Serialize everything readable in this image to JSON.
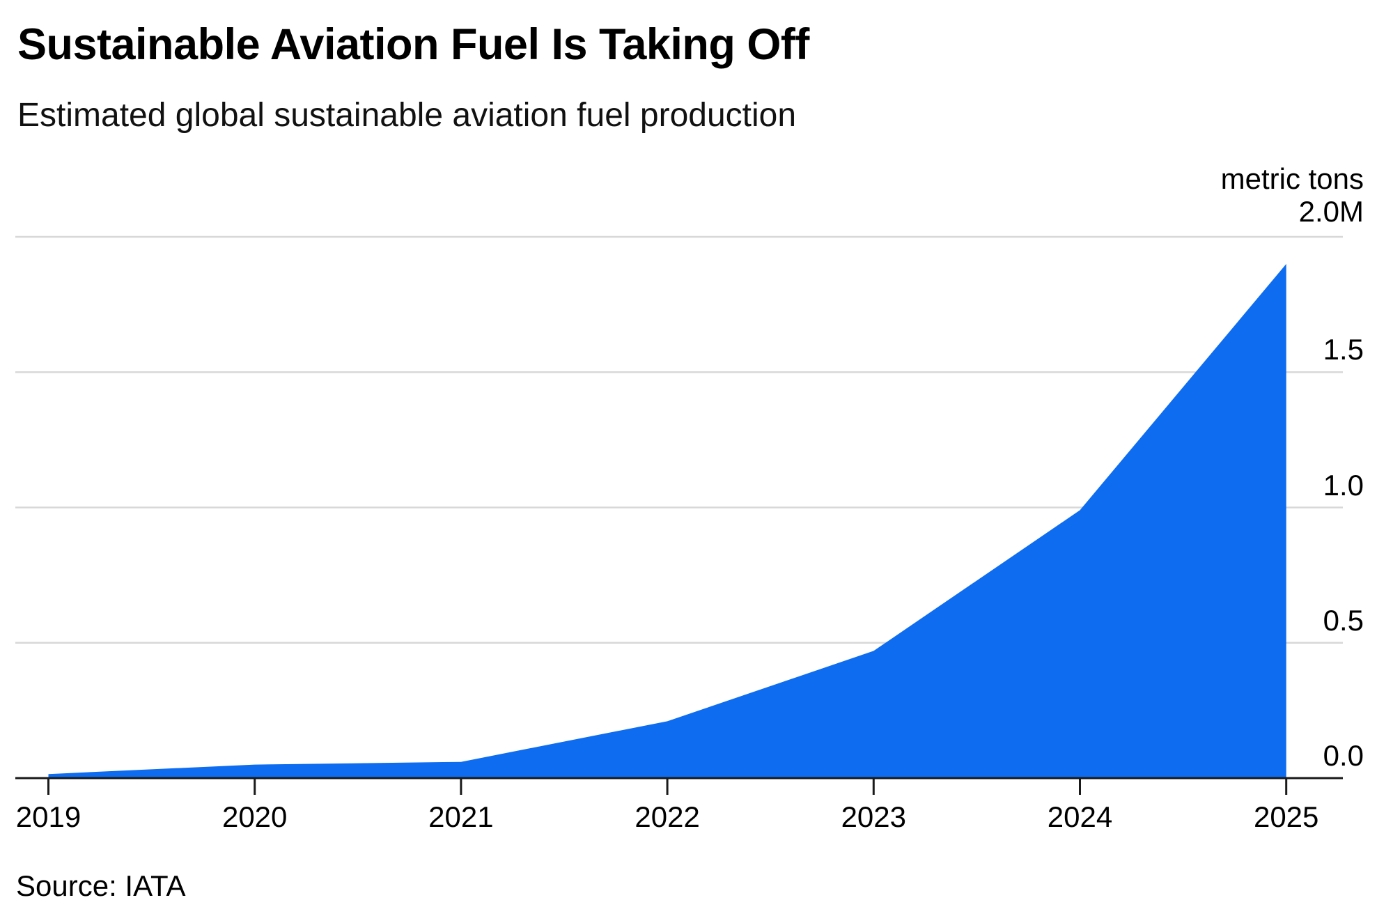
{
  "header": {
    "title": "Sustainable Aviation Fuel Is Taking Off",
    "subtitle": "Estimated global sustainable aviation fuel production"
  },
  "footer": {
    "source": "Source: IATA"
  },
  "chart_data": {
    "type": "area",
    "title": "Sustainable Aviation Fuel Is Taking Off",
    "subtitle": "Estimated global sustainable aviation fuel production",
    "unit_label": "metric tons",
    "categories": [
      "2019",
      "2020",
      "2021",
      "2022",
      "2023",
      "2024",
      "2025"
    ],
    "series": [
      {
        "name": "Estimated global sustainable aviation fuel production (million metric tons)",
        "values": [
          0.015,
          0.05,
          0.06,
          0.21,
          0.47,
          0.99,
          1.9
        ]
      }
    ],
    "xlabel": "",
    "ylabel": "metric tons",
    "ylim": [
      0,
      2.0
    ],
    "y_ticks": [
      {
        "value": 2.0,
        "label": "2.0M"
      },
      {
        "value": 1.5,
        "label": "1.5"
      },
      {
        "value": 1.0,
        "label": "1.0"
      },
      {
        "value": 0.5,
        "label": "0.5"
      },
      {
        "value": 0.0,
        "label": "0.0"
      }
    ],
    "grid": "horizontal",
    "legend_position": "none",
    "source": "Source: IATA",
    "colors": {
      "area": "#0d6cf0",
      "grid": "#d8d8d8",
      "axis": "#1a1a1a",
      "text": "#000000"
    }
  }
}
